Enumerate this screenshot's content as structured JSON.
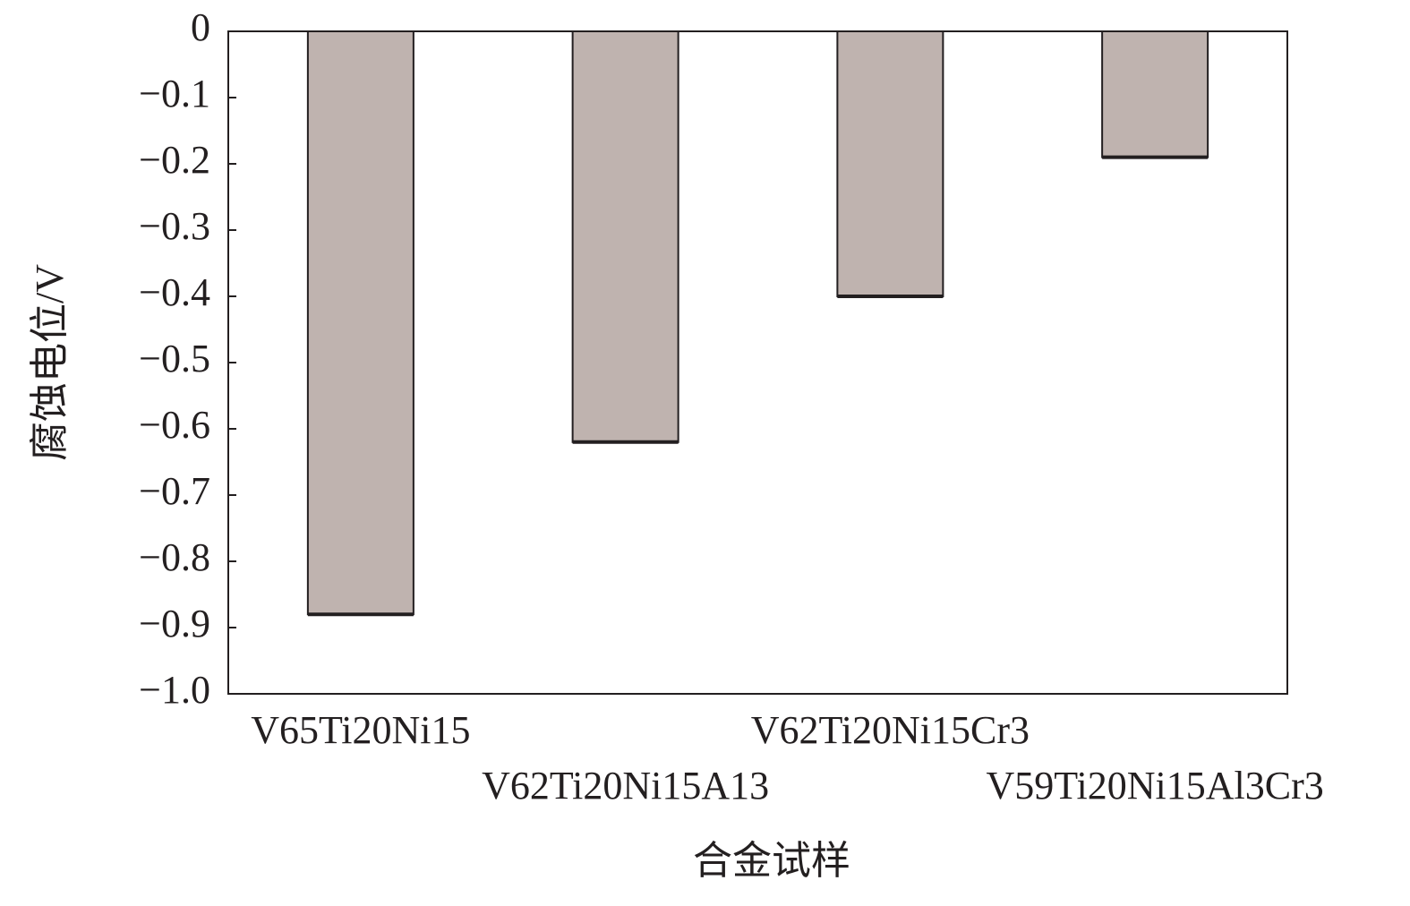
{
  "chart_data": {
    "type": "bar",
    "x_label": "合金试样",
    "y_label": "腐蚀电位/V",
    "categories": [
      "V65Ti20Ni15",
      "V62Ti20Ni15A13",
      "V62Ti20Ni15Cr3",
      "V59Ti20Ni15Al3Cr3"
    ],
    "values": [
      -0.88,
      -0.62,
      -0.4,
      -0.19
    ],
    "color": "#bfb3af",
    "ylim": [
      -1.0,
      0
    ],
    "yticks": [
      0,
      {
        "value": -0.1,
        "label": "−0.1"
      },
      {
        "value": -0.2,
        "label": "−0.2"
      },
      {
        "value": -0.3,
        "label": "−0.3"
      },
      {
        "value": -0.4,
        "label": "−0.4"
      },
      {
        "value": -0.5,
        "label": "−0.5"
      },
      {
        "value": -0.6,
        "label": "−0.6"
      },
      {
        "value": -0.7,
        "label": "−0.7"
      },
      {
        "value": -0.8,
        "label": "−0.8"
      },
      {
        "value": -0.9,
        "label": "−0.9"
      },
      {
        "value": -1.0,
        "label": "−1.0"
      }
    ],
    "grid": false
  }
}
